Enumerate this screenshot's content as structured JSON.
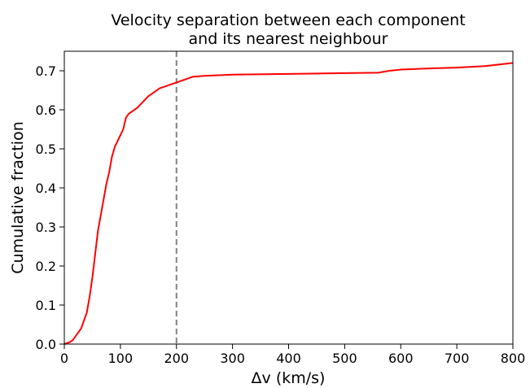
{
  "chart_data": {
    "type": "line",
    "title_lines": [
      "Velocity separation between each component",
      "and its nearest neighbour"
    ],
    "xlabel": "Δv (km/s)",
    "ylabel": "Cumulative fraction",
    "xlim": [
      0,
      800
    ],
    "ylim": [
      0,
      0.75
    ],
    "xticks": [
      "0",
      "100",
      "200",
      "300",
      "400",
      "500",
      "600",
      "700",
      "800"
    ],
    "yticks": [
      "0.0",
      "0.1",
      "0.2",
      "0.3",
      "0.4",
      "0.5",
      "0.6",
      "0.7"
    ],
    "grid": false,
    "reference_line": {
      "x": 200,
      "style": "dashed",
      "color": "#808080"
    },
    "series": [
      {
        "color": "#ff0000",
        "x": [
          0,
          10,
          15,
          20,
          25,
          30,
          35,
          40,
          45,
          50,
          55,
          60,
          65,
          70,
          75,
          80,
          85,
          90,
          95,
          100,
          105,
          110,
          115,
          120,
          130,
          140,
          150,
          160,
          170,
          180,
          190,
          200,
          210,
          220,
          230,
          250,
          300,
          400,
          500,
          560,
          580,
          600,
          650,
          700,
          750,
          800
        ],
        "y": [
          0,
          0.005,
          0.01,
          0.02,
          0.03,
          0.04,
          0.06,
          0.08,
          0.12,
          0.17,
          0.23,
          0.29,
          0.33,
          0.37,
          0.41,
          0.44,
          0.48,
          0.505,
          0.52,
          0.535,
          0.55,
          0.58,
          0.59,
          0.595,
          0.605,
          0.62,
          0.635,
          0.645,
          0.655,
          0.66,
          0.665,
          0.67,
          0.675,
          0.68,
          0.685,
          0.687,
          0.69,
          0.692,
          0.694,
          0.695,
          0.7,
          0.703,
          0.706,
          0.708,
          0.712,
          0.72
        ]
      }
    ]
  }
}
